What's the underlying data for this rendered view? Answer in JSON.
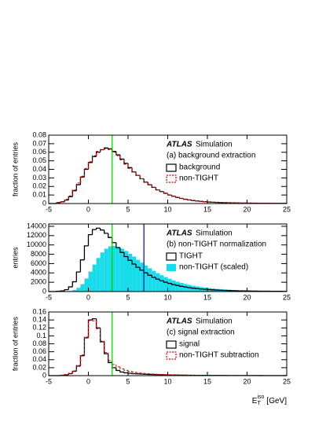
{
  "chart_data": [
    {
      "type": "histogram",
      "atlas": "ATLAS",
      "simulation": "Simulation",
      "subtitle": "(a) background extraction",
      "ylabel": "fraction of entries",
      "xlim": [
        -5,
        25
      ],
      "xticks": [
        -5,
        0,
        5,
        10,
        15,
        20,
        25
      ],
      "ylim": [
        0,
        0.08
      ],
      "yticks": [
        0,
        0.01,
        0.02,
        0.03,
        0.04,
        0.05,
        0.06,
        0.07,
        0.08
      ],
      "vlines": [
        {
          "x": 3,
          "color": "#00cc00"
        }
      ],
      "bins": [
        -5,
        -4.5,
        -4,
        -3.5,
        -3,
        -2.5,
        -2,
        -1.5,
        -1,
        -0.5,
        0,
        0.5,
        1,
        1.5,
        2,
        2.5,
        3,
        3.5,
        4,
        4.5,
        5,
        5.5,
        6,
        6.5,
        7,
        7.5,
        8,
        8.5,
        9,
        9.5,
        10,
        10.5,
        11,
        11.5,
        12,
        12.5,
        13,
        13.5,
        14,
        14.5,
        15,
        15.5,
        16,
        16.5,
        17,
        17.5,
        18,
        18.5,
        19,
        19.5,
        20,
        20.5,
        21,
        21.5,
        22,
        22.5,
        23,
        23.5,
        24,
        24.5,
        25
      ],
      "series": [
        {
          "name": "background",
          "color": "#000000",
          "style": "outline",
          "values": [
            0,
            0,
            0.001,
            0.002,
            0.004,
            0.008,
            0.015,
            0.022,
            0.031,
            0.04,
            0.048,
            0.055,
            0.06,
            0.063,
            0.065,
            0.064,
            0.061,
            0.057,
            0.052,
            0.047,
            0.042,
            0.037,
            0.033,
            0.029,
            0.025,
            0.022,
            0.019,
            0.016,
            0.014,
            0.012,
            0.01,
            0.0085,
            0.0072,
            0.006,
            0.005,
            0.0042,
            0.0035,
            0.003,
            0.0025,
            0.0021,
            0.0018,
            0.0015,
            0.0013,
            0.0011,
            0.001,
            0.0009,
            0.0008,
            0.0007,
            0.0006,
            0.0005,
            0.0005,
            0.0004,
            0.0004,
            0.0003,
            0.0003,
            0.0003,
            0.0002,
            0.0002,
            0.0002,
            0.0002
          ]
        },
        {
          "name": "non-TIGHT",
          "color": "#dd0000",
          "style": "dashed",
          "values": [
            0,
            0,
            0.001,
            0.002,
            0.005,
            0.009,
            0.016,
            0.024,
            0.032,
            0.041,
            0.049,
            0.056,
            0.061,
            0.063,
            0.064,
            0.063,
            0.06,
            0.056,
            0.051,
            0.046,
            0.041,
            0.037,
            0.033,
            0.029,
            0.025,
            0.022,
            0.019,
            0.016,
            0.014,
            0.012,
            0.01,
            0.0085,
            0.0072,
            0.006,
            0.005,
            0.0042,
            0.0035,
            0.003,
            0.0025,
            0.0021,
            0.0018,
            0.0015,
            0.0013,
            0.0011,
            0.001,
            0.0009,
            0.0008,
            0.0007,
            0.0006,
            0.0005,
            0.0005,
            0.0004,
            0.0004,
            0.0003,
            0.0003,
            0.0003,
            0.0002,
            0.0002,
            0.0002,
            0.0002
          ]
        }
      ]
    },
    {
      "type": "histogram",
      "atlas": "ATLAS",
      "simulation": "Simulation",
      "subtitle": "(b) non-TIGHT normalization",
      "ylabel": "entries",
      "xlim": [
        -5,
        25
      ],
      "xticks": [
        -5,
        0,
        5,
        10,
        15,
        20,
        25
      ],
      "ylim": [
        0,
        14500
      ],
      "yticks": [
        0,
        2000,
        4000,
        6000,
        8000,
        10000,
        12000,
        14000
      ],
      "vlines": [
        {
          "x": 3,
          "color": "#00cc00"
        },
        {
          "x": 7,
          "color": "#0000cc"
        }
      ],
      "bins": [
        -5,
        -4.5,
        -4,
        -3.5,
        -3,
        -2.5,
        -2,
        -1.5,
        -1,
        -0.5,
        0,
        0.5,
        1,
        1.5,
        2,
        2.5,
        3,
        3.5,
        4,
        4.5,
        5,
        5.5,
        6,
        6.5,
        7,
        7.5,
        8,
        8.5,
        9,
        9.5,
        10,
        10.5,
        11,
        11.5,
        12,
        12.5,
        13,
        13.5,
        14,
        14.5,
        15,
        15.5,
        16,
        16.5,
        17,
        17.5,
        18,
        18.5,
        19,
        19.5,
        20,
        20.5,
        21,
        21.5,
        22,
        22.5,
        23,
        23.5,
        24,
        24.5,
        25
      ],
      "series": [
        {
          "name": "TIGHT",
          "color": "#000000",
          "style": "outline",
          "values": [
            0,
            0,
            50,
            150,
            400,
            1000,
            2100,
            4200,
            6800,
            9800,
            12200,
            13300,
            13600,
            13200,
            12500,
            11600,
            10500,
            9400,
            8400,
            7500,
            6700,
            5900,
            5200,
            4600,
            4000,
            3500,
            3050,
            2650,
            2300,
            2000,
            1750,
            1500,
            1300,
            1120,
            970,
            840,
            730,
            630,
            550,
            480,
            420,
            370,
            320,
            280,
            250,
            220,
            195,
            170,
            150,
            135,
            120,
            108,
            97,
            88,
            80,
            72,
            65,
            58,
            52,
            47
          ]
        },
        {
          "name": "non-TIGHT (scaled)",
          "color": "#19dcea",
          "style": "filled",
          "values": [
            0,
            0,
            0,
            20,
            60,
            150,
            350,
            800,
            1600,
            2800,
            4300,
            5800,
            7200,
            8400,
            9200,
            9700,
            9800,
            9600,
            9200,
            8700,
            8100,
            7500,
            6800,
            6200,
            5600,
            5000,
            4450,
            3950,
            3500,
            3100,
            2750,
            2400,
            2100,
            1850,
            1620,
            1420,
            1250,
            1100,
            960,
            840,
            740,
            650,
            570,
            500,
            440,
            390,
            340,
            300,
            265,
            235,
            210,
            185,
            165,
            148,
            132,
            118,
            105,
            94,
            84,
            75
          ]
        }
      ]
    },
    {
      "type": "histogram",
      "atlas": "ATLAS",
      "simulation": "Simulation",
      "subtitle": "(c) signal extraction",
      "ylabel": "fraction of entries",
      "xlabel": {
        "base": "E",
        "sub": "T",
        "sup": "iso",
        "unit": "[GeV]"
      },
      "xlim": [
        -5,
        25
      ],
      "xticks": [
        -5,
        0,
        5,
        10,
        15,
        20,
        25
      ],
      "ylim": [
        0,
        0.16
      ],
      "yticks": [
        0,
        0.02,
        0.04,
        0.06,
        0.08,
        0.1,
        0.12,
        0.14,
        0.16
      ],
      "vlines": [
        {
          "x": 3,
          "color": "#00cc00"
        }
      ],
      "bins": [
        -5,
        -4.5,
        -4,
        -3.5,
        -3,
        -2.5,
        -2,
        -1.5,
        -1,
        -0.5,
        0,
        0.5,
        1,
        1.5,
        2,
        2.5,
        3,
        3.5,
        4,
        4.5,
        5,
        5.5,
        6,
        6.5,
        7,
        7.5,
        8,
        8.5,
        9,
        9.5,
        10,
        10.5,
        11,
        11.5,
        12,
        12.5,
        13,
        13.5,
        14,
        14.5,
        15,
        15.5,
        16,
        16.5,
        17,
        17.5,
        18,
        18.5,
        19,
        19.5,
        20,
        20.5,
        21,
        21.5,
        22,
        22.5,
        23,
        23.5,
        24,
        24.5,
        25
      ],
      "series": [
        {
          "name": "signal",
          "color": "#000000",
          "style": "outline",
          "values": [
            0,
            0,
            0,
            0.001,
            0.002,
            0.005,
            0.011,
            0.024,
            0.05,
            0.095,
            0.14,
            0.143,
            0.12,
            0.085,
            0.055,
            0.033,
            0.02,
            0.013,
            0.009,
            0.007,
            0.006,
            0.005,
            0.0045,
            0.004,
            0.0035,
            0.003,
            0.0028,
            0.0025,
            0.0022,
            0.002,
            0.0018,
            0.0016,
            0.0014,
            0.0012,
            0.0011,
            0.001,
            0.0009,
            0.0008,
            0.0007,
            0.0006,
            0.0006,
            0.0005,
            0.0005,
            0.0004,
            0.0004,
            0.0003,
            0.0003,
            0.0003,
            0.0002,
            0.0002,
            0.0002,
            0.0002,
            0.0002,
            0.0001,
            0.0001,
            0.0001,
            0.0001,
            0.0001,
            0.0001,
            0.0001
          ]
        },
        {
          "name": "non-TIGHT subtraction",
          "color": "#dd0000",
          "style": "dashed",
          "values": [
            0,
            0,
            0,
            0.001,
            0.003,
            0.006,
            0.012,
            0.026,
            0.052,
            0.097,
            0.138,
            0.138,
            0.118,
            0.087,
            0.058,
            0.038,
            0.028,
            0.022,
            0.017,
            0.013,
            0.011,
            0.009,
            0.0075,
            0.0065,
            0.0055,
            0.0047,
            0.004,
            0.0035,
            0.003,
            0.0026,
            0.0022,
            0.0019,
            0.0017,
            0.0015,
            0.0013,
            0.0011,
            0.001,
            0.0009,
            0.0008,
            0.0007,
            0.0006,
            0.0006,
            0.0005,
            0.0005,
            0.0004,
            0.0004,
            0.0003,
            0.0003,
            0.0003,
            0.0003,
            0.0002,
            0.0002,
            0.0002,
            0.0002,
            0.0001,
            0.0001,
            0.0001,
            0.0001,
            0.0001,
            0.0001
          ]
        }
      ]
    }
  ]
}
